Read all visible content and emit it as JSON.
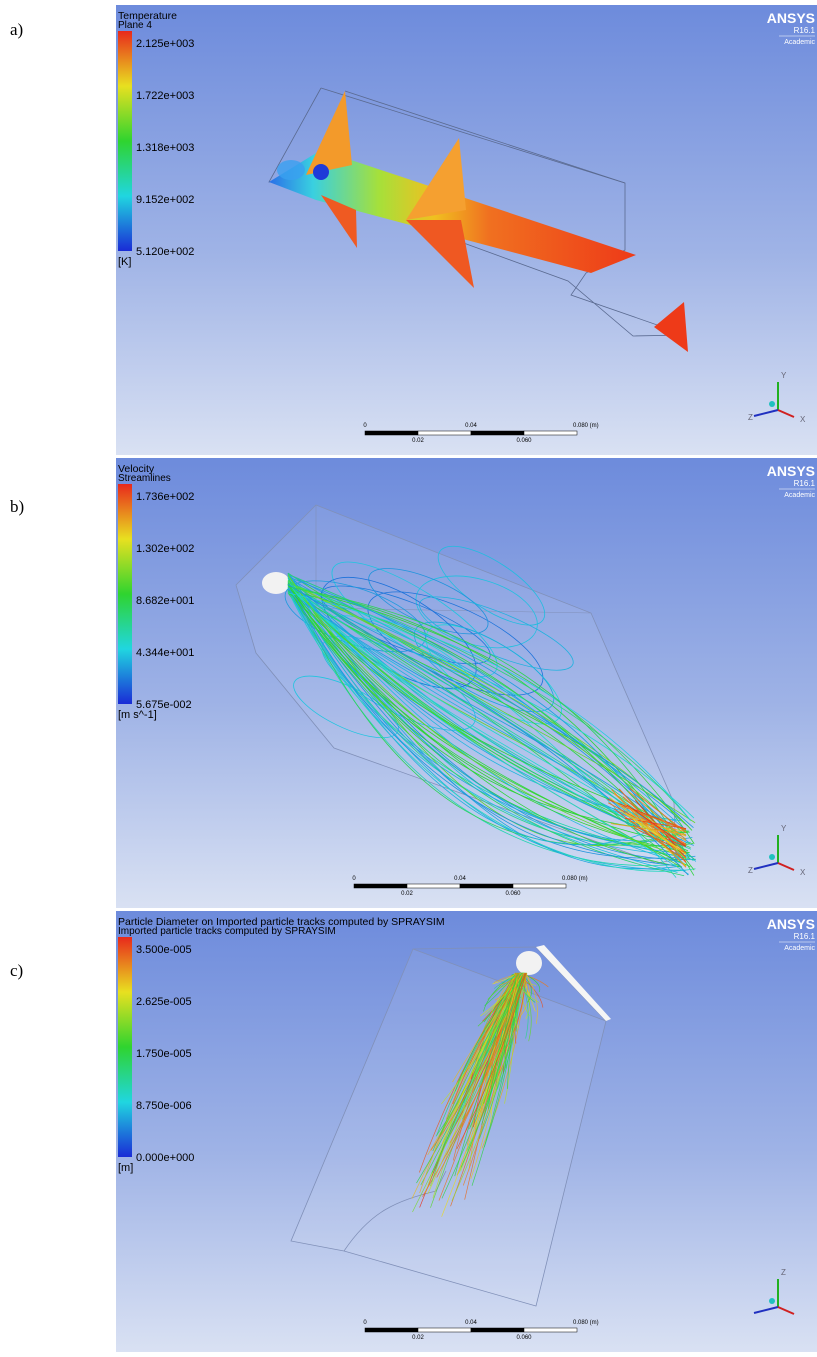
{
  "figure": {
    "panels": [
      {
        "label": "a)",
        "title": "Temperature",
        "subtitle": "Plane 4",
        "legend_ticks": [
          "2.125e+003",
          "1.722e+003",
          "1.318e+003",
          "9.152e+002",
          "5.120e+002"
        ],
        "unit": "[K]",
        "logo": {
          "name": "ANSYS",
          "version": "R16.1",
          "edition": "Academic"
        },
        "scale_top": [
          "0",
          "0.04",
          "0.080  (m)"
        ],
        "scale_bottom": [
          "0.02",
          "0.060"
        ],
        "axes": [
          "Y",
          "Z",
          "X"
        ]
      },
      {
        "label": "b)",
        "title": "Velocity",
        "subtitle": "Streamlines",
        "legend_ticks": [
          "1.736e+002",
          "1.302e+002",
          "8.682e+001",
          "4.344e+001",
          "5.675e-002"
        ],
        "unit": "[m s^-1]",
        "logo": {
          "name": "ANSYS",
          "version": "R16.1",
          "edition": "Academic"
        },
        "scale_top": [
          "0",
          "0.04",
          "0.080  (m)"
        ],
        "scale_bottom": [
          "0.02",
          "0.060"
        ],
        "axes": [
          "Y",
          "Z",
          "X"
        ]
      },
      {
        "label": "c)",
        "title": "Particle Diameter on Imported particle tracks computed by SPRAYSIM",
        "subtitle": "Imported particle tracks computed by SPRAYSIM",
        "legend_ticks": [
          "3.500e-005",
          "2.625e-005",
          "1.750e-005",
          "8.750e-006",
          "0.000e+000"
        ],
        "unit": "[m]",
        "logo": {
          "name": "ANSYS",
          "version": "R16.1",
          "edition": "Academic"
        },
        "scale_top": [
          "0",
          "0.04",
          "0.080  (m)"
        ],
        "scale_bottom": [
          "0.02",
          "0.060"
        ],
        "axes": [
          "Z"
        ]
      }
    ]
  }
}
